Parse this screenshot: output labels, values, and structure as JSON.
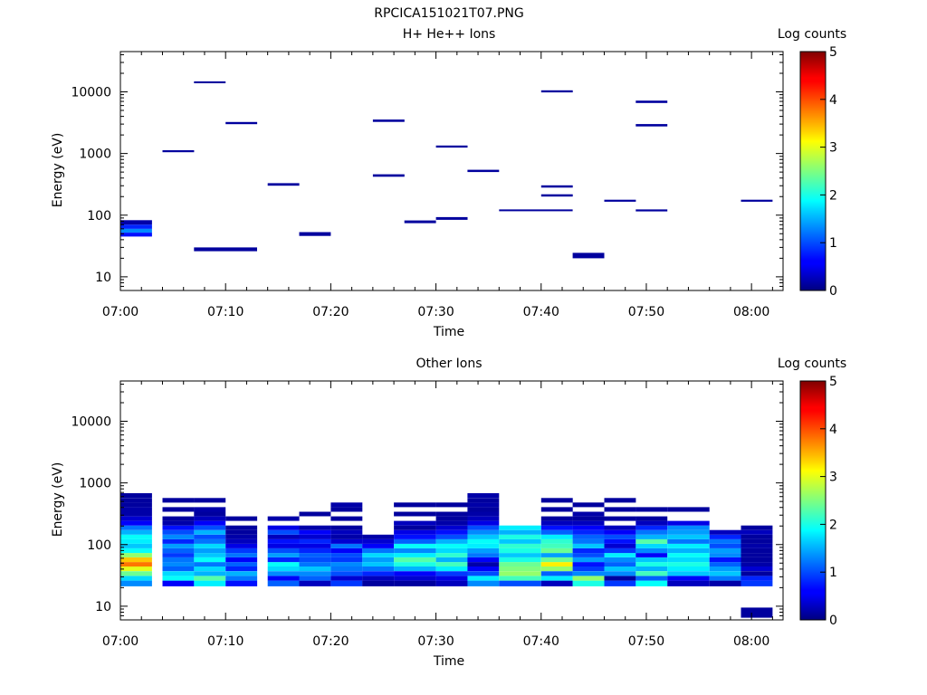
{
  "figure": {
    "title": "RPCICA151021T07.PNG"
  },
  "chart_data": [
    {
      "type": "heatmap",
      "title": "H+ He++ Ions",
      "xlabel": "Time",
      "ylabel": "Energy (eV)",
      "x_ticks": [
        "07:00",
        "07:10",
        "07:20",
        "07:30",
        "07:40",
        "07:50",
        "08:00"
      ],
      "xlim": [
        "07:00",
        "08:03"
      ],
      "y_scale": "log",
      "ylim": [
        6,
        45000
      ],
      "y_ticks": [
        "10",
        "100",
        "1000",
        "10000"
      ],
      "colorbar": {
        "label": "Log counts",
        "ticks": [
          "0",
          "1",
          "2",
          "3",
          "4",
          "5"
        ],
        "range": [
          0,
          5
        ],
        "colormap": "jet"
      },
      "cells": [
        {
          "t0": "07:00",
          "t1": "07:03",
          "e": [
            70,
            83
          ],
          "v": 0.2
        },
        {
          "t0": "07:00",
          "t1": "07:03",
          "e": [
            60,
            70
          ],
          "v": 0.8
        },
        {
          "t0": "07:00",
          "t1": "07:03",
          "e": [
            52,
            60
          ],
          "v": 1.3
        },
        {
          "t0": "07:00",
          "t1": "07:03",
          "e": [
            45,
            52
          ],
          "v": 0.7
        },
        {
          "t0": "07:04",
          "t1": "07:07",
          "e": [
            1050,
            1130
          ],
          "v": 0.15
        },
        {
          "t0": "07:07",
          "t1": "07:10",
          "e": [
            13800,
            14800
          ],
          "v": 0.15
        },
        {
          "t0": "07:07",
          "t1": "07:13",
          "e": [
            26,
            30
          ],
          "v": 0.15
        },
        {
          "t0": "07:10",
          "t1": "07:13",
          "e": [
            3000,
            3250
          ],
          "v": 0.15
        },
        {
          "t0": "07:14",
          "t1": "07:17",
          "e": [
            300,
            330
          ],
          "v": 0.15
        },
        {
          "t0": "07:17",
          "t1": "07:20",
          "e": [
            46,
            53
          ],
          "v": 0.15
        },
        {
          "t0": "07:24",
          "t1": "07:27",
          "e": [
            3250,
            3550
          ],
          "v": 0.15
        },
        {
          "t0": "07:24",
          "t1": "07:27",
          "e": [
            420,
            460
          ],
          "v": 0.15
        },
        {
          "t0": "07:27",
          "t1": "07:30",
          "e": [
            74,
            82
          ],
          "v": 0.15
        },
        {
          "t0": "07:30",
          "t1": "07:33",
          "e": [
            1250,
            1350
          ],
          "v": 0.15
        },
        {
          "t0": "07:30",
          "t1": "07:33",
          "e": [
            84,
            93
          ],
          "v": 0.15
        },
        {
          "t0": "07:33",
          "t1": "07:36",
          "e": [
            500,
            545
          ],
          "v": 0.15
        },
        {
          "t0": "07:36",
          "t1": "07:43",
          "e": [
            116,
            124
          ],
          "v": 0.15
        },
        {
          "t0": "07:40",
          "t1": "07:43",
          "e": [
            9800,
            10600
          ],
          "v": 0.15
        },
        {
          "t0": "07:40",
          "t1": "07:43",
          "e": [
            280,
            305
          ],
          "v": 0.15
        },
        {
          "t0": "07:40",
          "t1": "07:43",
          "e": [
            200,
            218
          ],
          "v": 0.15
        },
        {
          "t0": "07:43",
          "t1": "07:46",
          "e": [
            20,
            24.5
          ],
          "v": 0.15
        },
        {
          "t0": "07:46",
          "t1": "07:49",
          "e": [
            165,
            178
          ],
          "v": 0.15
        },
        {
          "t0": "07:49",
          "t1": "07:52",
          "e": [
            6600,
            7200
          ],
          "v": 0.15
        },
        {
          "t0": "07:49",
          "t1": "07:52",
          "e": [
            2750,
            3000
          ],
          "v": 0.15
        },
        {
          "t0": "07:49",
          "t1": "07:52",
          "e": [
            115,
            124
          ],
          "v": 0.15
        },
        {
          "t0": "07:59",
          "t1": "08:02",
          "e": [
            165,
            178
          ],
          "v": 0.15
        }
      ]
    },
    {
      "type": "heatmap",
      "title": "Other Ions",
      "xlabel": "Time",
      "ylabel": "Energy (eV)",
      "x_ticks": [
        "07:00",
        "07:10",
        "07:20",
        "07:30",
        "07:40",
        "07:50",
        "08:00"
      ],
      "xlim": [
        "07:00",
        "08:03"
      ],
      "y_scale": "log",
      "ylim": [
        6,
        45000
      ],
      "y_ticks": [
        "10",
        "100",
        "1000",
        "10000"
      ],
      "colorbar": {
        "label": "Log counts",
        "ticks": [
          "0",
          "1",
          "2",
          "3",
          "4",
          "5"
        ],
        "range": [
          0,
          5
        ],
        "colormap": "jet"
      },
      "columns": [
        {
          "t0": "07:00",
          "t1": "07:03",
          "v": [
            1.3,
            1.7,
            2.4,
            3.0,
            3.8,
            3.4,
            2.6,
            1.9,
            1.6,
            1.8,
            1.9,
            1.5,
            1.2,
            0.6,
            0.4,
            0.2,
            0.2,
            0.15,
            0.15,
            0.15
          ]
        },
        {
          "t0": "07:04",
          "t1": "07:07",
          "v": [
            0.6,
            1.9,
            1.7,
            1.1,
            1.3,
            1.2,
            0.9,
            1.1,
            1.4,
            0.8,
            1.3,
            1.0,
            0.7,
            0.2,
            0.15,
            null,
            0.15,
            null,
            0.15,
            null
          ]
        },
        {
          "t0": "07:07",
          "t1": "07:10",
          "v": [
            1.8,
            2.3,
            1.5,
            1.7,
            1.2,
            1.9,
            1.6,
            1.4,
            1.7,
            1.2,
            1.0,
            1.5,
            1.0,
            0.6,
            0.3,
            0.15,
            0.2,
            null,
            0.15,
            null
          ]
        },
        {
          "t0": "07:10",
          "t1": "07:13",
          "v": [
            0.7,
            1.2,
            1.5,
            0.8,
            1.1,
            0.6,
            1.2,
            0.9,
            0.5,
            0.3,
            0.2,
            0.15,
            0.15,
            null,
            0.15,
            null,
            null,
            null,
            null,
            null
          ]
        },
        {
          "t0": "07:14",
          "t1": "07:17",
          "v": [
            1.1,
            0.6,
            1.3,
            1.7,
            1.9,
            0.8,
            1.4,
            1.0,
            0.5,
            0.7,
            0.3,
            1.0,
            0.5,
            null,
            0.2,
            null,
            null,
            null,
            null,
            null
          ]
        },
        {
          "t0": "07:17",
          "t1": "07:20",
          "v": [
            0.3,
            1.1,
            1.3,
            1.6,
            1.2,
            1.0,
            1.1,
            0.8,
            0.5,
            0.8,
            0.4,
            0.6,
            0.2,
            null,
            null,
            0.15,
            null,
            null,
            null,
            null
          ]
        },
        {
          "t0": "07:20",
          "t1": "07:23",
          "v": [
            0.9,
            0.4,
            1.0,
            1.2,
            1.3,
            0.9,
            1.0,
            0.6,
            1.2,
            0.4,
            0.2,
            0.3,
            0.15,
            null,
            0.15,
            null,
            0.15,
            0.2,
            null,
            null
          ]
        },
        {
          "t0": "07:23",
          "t1": "07:26",
          "v": [
            0.15,
            0.3,
            0.8,
            1.2,
            1.6,
            1.4,
            1.7,
            1.2,
            0.6,
            0.4,
            0.2,
            null,
            null,
            null,
            null,
            null,
            null,
            null,
            null,
            null
          ]
        },
        {
          "t0": "07:26",
          "t1": "07:30",
          "v": [
            0.15,
            0.4,
            0.6,
            1.5,
            2.0,
            2.3,
            1.8,
            1.3,
            1.9,
            1.1,
            0.7,
            0.5,
            0.15,
            0.3,
            null,
            0.15,
            null,
            0.15,
            null,
            null
          ]
        },
        {
          "t0": "07:30",
          "t1": "07:33",
          "v": [
            0.3,
            0.5,
            0.9,
            1.8,
            2.2,
            1.5,
            2.1,
            1.7,
            1.9,
            1.5,
            1.0,
            0.7,
            0.4,
            0.2,
            0.15,
            0.15,
            null,
            0.15,
            null,
            null
          ]
        },
        {
          "t0": "07:33",
          "t1": "07:36",
          "v": [
            1.3,
            1.8,
            1.0,
            0.6,
            0.2,
            0.6,
            1.2,
            1.4,
            1.8,
            1.9,
            1.6,
            1.3,
            1.0,
            0.5,
            0.3,
            0.2,
            0.15,
            0.2,
            0.15,
            0.2
          ]
        },
        {
          "t0": "07:36",
          "t1": "07:40",
          "v": [
            1.0,
            2.2,
            2.6,
            2.5,
            2.4,
            2.0,
            1.6,
            2.0,
            2.1,
            1.6,
            2.0,
            1.5,
            1.8,
            null,
            null,
            null,
            null,
            null,
            null,
            null
          ]
        },
        {
          "t0": "07:40",
          "t1": "07:43",
          "v": [
            0.3,
            1.8,
            1.1,
            2.6,
            3.2,
            2.4,
            1.4,
            2.4,
            2.2,
            2.1,
            1.8,
            1.1,
            0.7,
            0.3,
            0.15,
            null,
            0.15,
            null,
            0.15,
            null
          ]
        },
        {
          "t0": "07:43",
          "t1": "07:46",
          "v": [
            2.0,
            2.6,
            1.3,
            0.9,
            0.7,
            1.4,
            1.0,
            0.8,
            1.6,
            1.2,
            1.1,
            0.8,
            0.6,
            0.3,
            0.15,
            0.2,
            null,
            0.15,
            null,
            null
          ]
        },
        {
          "t0": "07:46",
          "t1": "07:49",
          "v": [
            0.9,
            0.15,
            1.3,
            1.6,
            1.1,
            1.3,
            1.8,
            0.9,
            0.4,
            0.7,
            1.0,
            0.6,
            0.3,
            null,
            0.15,
            null,
            0.15,
            null,
            0.15,
            null
          ]
        },
        {
          "t0": "07:49",
          "t1": "07:52",
          "v": [
            1.9,
            1.1,
            2.2,
            1.5,
            2.0,
            1.6,
            0.6,
            1.3,
            1.7,
            2.3,
            1.5,
            1.2,
            0.8,
            0.3,
            0.15,
            null,
            0.15,
            null,
            null,
            null
          ]
        },
        {
          "t0": "07:52",
          "t1": "07:56",
          "v": [
            0.3,
            0.6,
            1.6,
            1.8,
            2.0,
            1.7,
            1.9,
            1.5,
            1.8,
            1.2,
            1.6,
            1.4,
            1.3,
            0.5,
            null,
            null,
            0.15,
            null,
            null,
            null
          ]
        },
        {
          "t0": "07:56",
          "t1": "07:59",
          "v": [
            0.2,
            1.2,
            1.6,
            1.4,
            1.1,
            0.7,
            1.3,
            1.4,
            1.0,
            1.2,
            0.8,
            0.3,
            null,
            null,
            null,
            null,
            null,
            null,
            null,
            null
          ]
        },
        {
          "t0": "07:59",
          "t1": "08:02",
          "v": [
            0.9,
            0.8,
            0.15,
            0.4,
            0.2,
            0.15,
            0.15,
            0.15,
            0.2,
            0.15,
            0.15,
            0.3,
            0.15,
            null,
            null,
            null,
            null,
            null,
            null,
            null
          ]
        }
      ],
      "extra_cells": [
        {
          "t0": "07:59",
          "t1": "08:02",
          "e": [
            6.5,
            9.5
          ],
          "v": 0.15
        }
      ]
    }
  ]
}
